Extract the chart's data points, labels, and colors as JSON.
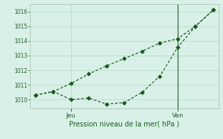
{
  "background_color": "#d8f0e8",
  "grid_color": "#b0d8c0",
  "line_color": "#1a5c1a",
  "ylim": [
    1009.4,
    1016.5
  ],
  "yticks": [
    1010,
    1011,
    1012,
    1013,
    1014,
    1015,
    1016
  ],
  "xlabel": "Pression niveau de la mer( hPa )",
  "x_tick_labels": [
    "Jeu",
    "Ven"
  ],
  "x_tick_positions": [
    2,
    8
  ],
  "xlim": [
    -0.3,
    10.3
  ],
  "line1_x": [
    0,
    1,
    2,
    3,
    4,
    5,
    6,
    7,
    8,
    9,
    10
  ],
  "line1_y": [
    1010.3,
    1010.55,
    1010.0,
    1010.1,
    1009.7,
    1009.8,
    1010.5,
    1011.6,
    1013.55,
    1015.0,
    1016.1
  ],
  "line2_x": [
    0,
    1,
    2,
    3,
    4,
    5,
    6,
    7,
    8,
    9,
    10
  ],
  "line2_y": [
    1010.3,
    1010.55,
    1011.1,
    1011.75,
    1012.3,
    1012.8,
    1013.3,
    1013.85,
    1014.15,
    1015.0,
    1016.1
  ],
  "vline_x": 8,
  "figsize": [
    3.2,
    2.0
  ],
  "dpi": 100
}
